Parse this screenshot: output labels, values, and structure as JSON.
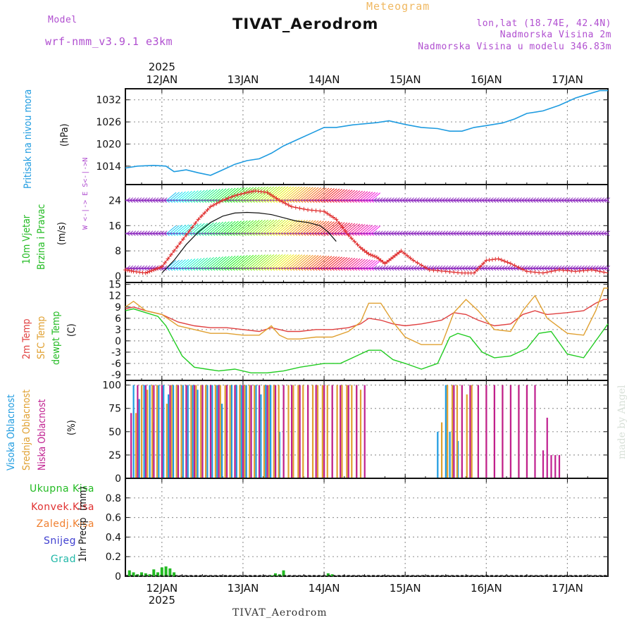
{
  "header": {
    "model_label": "Model",
    "model_name": "wrf-nmm_v3.9.1 e3km",
    "station": "TIVAT_Aerodrom",
    "product": "Meteogram",
    "lonlat": "lon,lat (18.74E, 42.4N)",
    "elevation": "Nadmorska Visina 2m",
    "model_elevation": "Nadmorska Visina u modelu 346.83m",
    "footer_station": "TIVAT_Aerodrom",
    "watermark": "made by Angel"
  },
  "colors": {
    "pressure": "#1e9be0",
    "gust": "#e03030",
    "wind": "#111111",
    "t2m": "#e04040",
    "sfc": "#e0a030",
    "dewpt": "#22cc22",
    "cloud_high": "#1e9be0",
    "cloud_mid": "#e0a030",
    "cloud_low": "#c02090",
    "precip": "#22bb22",
    "purple": "#9030c0",
    "grid": "#999999"
  },
  "chart_data": [
    {
      "type": "line",
      "panel": "pressure",
      "ylabel_main": "Pritisak na nivou mora",
      "ylabel_unit": "(hPa)",
      "xlim": [
        11.55,
        17.5
      ],
      "ylim": [
        1009,
        1035
      ],
      "yticks": [
        1014,
        1020,
        1026,
        1032
      ],
      "top_year": "2025",
      "x_ticks": [
        12,
        13,
        14,
        15,
        16,
        17
      ],
      "x_labels": [
        "12JAN",
        "13JAN",
        "14JAN",
        "15JAN",
        "16JAN",
        "17JAN"
      ],
      "series": [
        {
          "name": "MSLP",
          "x": [
            11.55,
            11.7,
            11.9,
            12.05,
            12.15,
            12.3,
            12.45,
            12.6,
            12.75,
            12.9,
            13.05,
            13.2,
            13.35,
            13.5,
            13.7,
            13.85,
            14.0,
            14.15,
            14.35,
            14.5,
            14.65,
            14.8,
            15.0,
            15.2,
            15.4,
            15.55,
            15.7,
            15.85,
            16.0,
            16.2,
            16.35,
            16.5,
            16.7,
            16.9,
            17.1,
            17.25,
            17.4,
            17.5
          ],
          "values": [
            1013.5,
            1014,
            1014.2,
            1014,
            1012.5,
            1013,
            1012.2,
            1011.5,
            1013,
            1014.5,
            1015.5,
            1016,
            1017.5,
            1019.5,
            1021.5,
            1023,
            1024.5,
            1024.5,
            1025.2,
            1025.5,
            1025.8,
            1026.3,
            1025.3,
            1024.5,
            1024.2,
            1023.5,
            1023.5,
            1024.5,
            1025,
            1025.7,
            1026.8,
            1028.3,
            1029,
            1030.5,
            1032.5,
            1033.5,
            1034.5,
            1034.5
          ]
        }
      ]
    },
    {
      "type": "line",
      "panel": "wind",
      "ylabel_main": "10m Vjetar",
      "ylabel_sub": "Brzina i Pravac",
      "ylabel_unit": "(m/s)",
      "compass": "W <-|-> E  S<-|->N",
      "ylim": [
        -2,
        29
      ],
      "yticks": [
        0,
        8,
        16,
        24
      ],
      "series": [
        {
          "name": "Gust",
          "x": [
            11.55,
            11.65,
            11.8,
            11.9,
            12.0,
            12.15,
            12.3,
            12.45,
            12.6,
            12.75,
            12.9,
            13.05,
            13.15,
            13.3,
            13.45,
            13.6,
            13.8,
            14.0,
            14.15,
            14.3,
            14.45,
            14.55,
            14.65,
            14.75,
            14.85,
            14.95,
            15.1,
            15.3,
            15.5,
            15.7,
            15.85,
            16.0,
            16.15,
            16.3,
            16.5,
            16.7,
            16.9,
            17.1,
            17.3,
            17.5
          ],
          "values": [
            2,
            1.5,
            1,
            2,
            3,
            8,
            13,
            18,
            22,
            24,
            25.5,
            26.5,
            27,
            26.5,
            24,
            22,
            21,
            20.5,
            18,
            13,
            9,
            7,
            6,
            4,
            6,
            8,
            5,
            2,
            1.5,
            1,
            1,
            5,
            5.5,
            4,
            1.5,
            1,
            2,
            1.5,
            2,
            1
          ]
        },
        {
          "name": "Wind",
          "x": [
            12.0,
            12.15,
            12.3,
            12.45,
            12.6,
            12.75,
            12.9,
            13.05,
            13.2,
            13.35,
            13.5,
            13.65,
            13.8,
            13.95,
            14.05,
            14.15
          ],
          "values": [
            1,
            5,
            10,
            14,
            17,
            19,
            20,
            20.2,
            20,
            19.5,
            18.5,
            17.5,
            17,
            16,
            14,
            11
          ]
        }
      ],
      "barb_rows": [
        24,
        13.5,
        2.5
      ]
    },
    {
      "type": "line",
      "panel": "temperature",
      "ylabel_1": "2m Temp",
      "ylabel_2": "SFC Temp",
      "ylabel_3": "dewpt Temp",
      "ylabel_unit": "(C)",
      "ylim": [
        -10.5,
        15.5
      ],
      "yticks": [
        -9,
        -6,
        -3,
        0,
        3,
        6,
        9,
        12,
        15
      ],
      "series": [
        {
          "name": "2m Temp",
          "x": [
            11.55,
            11.65,
            11.8,
            12.0,
            12.2,
            12.4,
            12.6,
            12.8,
            13.0,
            13.2,
            13.35,
            13.45,
            13.55,
            13.7,
            13.9,
            14.1,
            14.3,
            14.45,
            14.55,
            14.7,
            14.85,
            15.0,
            15.2,
            15.45,
            15.6,
            15.75,
            15.9,
            16.1,
            16.3,
            16.45,
            16.6,
            16.75,
            17.0,
            17.2,
            17.35,
            17.45,
            17.5
          ],
          "values": [
            8.5,
            9,
            8,
            7,
            5,
            4,
            3.5,
            3.5,
            3,
            2.5,
            3.5,
            3,
            2.5,
            2.5,
            3,
            3,
            3.5,
            4.5,
            6,
            5.5,
            4.5,
            4,
            4.5,
            5.5,
            7.5,
            7,
            5.5,
            4,
            4.5,
            7,
            8,
            7,
            7.5,
            8,
            10,
            11,
            11
          ]
        },
        {
          "name": "SFC Temp",
          "x": [
            11.55,
            11.65,
            11.8,
            12.0,
            12.2,
            12.4,
            12.6,
            12.8,
            13.0,
            13.2,
            13.35,
            13.45,
            13.55,
            13.7,
            13.9,
            14.1,
            14.3,
            14.45,
            14.55,
            14.7,
            14.85,
            15.0,
            15.2,
            15.45,
            15.6,
            15.75,
            15.9,
            16.1,
            16.3,
            16.45,
            16.6,
            16.75,
            17.0,
            17.2,
            17.35,
            17.45,
            17.5
          ],
          "values": [
            9,
            10.5,
            8,
            7,
            4,
            3,
            2,
            2,
            1.5,
            1.5,
            4,
            1.5,
            0.5,
            0.5,
            1,
            1,
            2.5,
            5,
            10,
            10,
            5,
            1,
            -1,
            -1,
            7.5,
            11,
            8,
            3,
            2.5,
            8,
            12,
            6,
            2,
            1.5,
            8,
            14,
            14
          ]
        },
        {
          "name": "dewpt Temp",
          "x": [
            11.55,
            11.65,
            11.8,
            11.95,
            12.05,
            12.15,
            12.25,
            12.4,
            12.55,
            12.7,
            12.9,
            13.1,
            13.3,
            13.5,
            13.7,
            14.0,
            14.2,
            14.4,
            14.55,
            14.7,
            14.85,
            15.0,
            15.2,
            15.4,
            15.55,
            15.65,
            15.8,
            15.95,
            16.1,
            16.3,
            16.5,
            16.65,
            16.8,
            17.0,
            17.2,
            17.35,
            17.5
          ],
          "values": [
            8,
            8.5,
            7.5,
            6.5,
            4,
            0,
            -4,
            -7,
            -7.5,
            -8,
            -7.5,
            -8.5,
            -8.5,
            -8,
            -7,
            -6,
            -6,
            -4,
            -2.5,
            -2.5,
            -5,
            -6,
            -7.5,
            -6,
            1,
            2,
            1,
            -3,
            -4.5,
            -4,
            -2,
            2,
            2.5,
            -3.5,
            -4.5,
            0,
            4.5
          ]
        }
      ]
    },
    {
      "type": "bar",
      "panel": "clouds",
      "ylabel_1": "Visoka Oblacnost",
      "ylabel_2": "Srednja Oblacnost",
      "ylabel_3": "Niska Oblacnost",
      "ylabel_unit": "(%)",
      "ylim": [
        0,
        105
      ],
      "yticks": [
        0,
        25,
        50,
        75,
        100
      ],
      "series": [
        {
          "name": "High",
          "x": [
            11.65,
            11.72,
            11.78,
            11.85,
            11.9,
            11.96,
            12.02,
            12.08,
            12.14,
            12.2,
            12.26,
            12.32,
            12.38,
            12.44,
            12.5,
            12.56,
            12.62,
            12.68,
            12.74,
            12.8,
            12.86,
            12.92,
            12.98,
            13.04,
            13.1,
            13.16,
            13.22,
            13.28,
            13.34,
            13.4,
            13.45,
            15.4,
            15.5,
            15.55,
            15.6,
            15.65,
            15.7
          ],
          "values": [
            100,
            85,
            100,
            100,
            60,
            100,
            100,
            90,
            100,
            100,
            100,
            100,
            100,
            95,
            100,
            100,
            100,
            100,
            80,
            100,
            100,
            100,
            100,
            100,
            100,
            100,
            90,
            100,
            100,
            30,
            50,
            50,
            100,
            50,
            100,
            40,
            10
          ]
        },
        {
          "name": "Mid",
          "x": [
            11.68,
            11.75,
            11.82,
            11.88,
            11.94,
            12.0,
            12.06,
            12.12,
            12.18,
            12.24,
            12.3,
            12.36,
            12.42,
            12.48,
            12.54,
            12.6,
            12.66,
            12.72,
            12.78,
            12.84,
            12.9,
            12.96,
            13.02,
            13.08,
            13.14,
            13.2,
            13.26,
            13.32,
            13.38,
            13.44,
            13.5,
            13.56,
            13.62,
            13.68,
            13.74,
            13.8,
            13.86,
            13.92,
            13.98,
            14.04,
            14.1,
            14.16,
            14.22,
            14.28,
            14.34,
            14.4,
            14.45,
            15.45,
            15.52,
            15.58,
            15.64,
            15.7,
            15.76,
            15.82,
            15.9,
            16.0,
            16.1,
            16.2,
            16.3,
            16.4,
            16.5
          ],
          "values": [
            70,
            100,
            95,
            100,
            100,
            100,
            80,
            100,
            100,
            100,
            100,
            100,
            100,
            100,
            100,
            100,
            100,
            100,
            100,
            100,
            100,
            100,
            100,
            100,
            100,
            100,
            100,
            100,
            100,
            100,
            100,
            100,
            100,
            100,
            100,
            100,
            100,
            100,
            100,
            100,
            100,
            100,
            100,
            100,
            100,
            100,
            95,
            60,
            100,
            100,
            100,
            100,
            90,
            100,
            100,
            100,
            100,
            100,
            100,
            100,
            100
          ]
        },
        {
          "name": "Low",
          "x": [
            11.62,
            11.7,
            11.8,
            11.9,
            12.0,
            12.1,
            12.2,
            12.3,
            12.4,
            12.5,
            12.6,
            12.7,
            12.8,
            12.9,
            13.0,
            13.1,
            13.2,
            13.3,
            13.4,
            13.5,
            13.6,
            13.7,
            13.8,
            13.9,
            14.0,
            14.1,
            14.2,
            14.3,
            14.4,
            14.5,
            15.6,
            15.7,
            15.8,
            15.9,
            16.0,
            16.1,
            16.2,
            16.3,
            16.4,
            16.5,
            16.6,
            16.7,
            16.75,
            16.8,
            16.85,
            16.9
          ],
          "values": [
            70,
            100,
            100,
            100,
            100,
            100,
            100,
            100,
            100,
            100,
            100,
            100,
            100,
            100,
            100,
            100,
            100,
            100,
            100,
            100,
            100,
            100,
            100,
            100,
            100,
            100,
            100,
            100,
            100,
            100,
            100,
            100,
            100,
            100,
            100,
            100,
            100,
            100,
            100,
            100,
            100,
            30,
            65,
            25,
            25,
            25
          ]
        }
      ]
    },
    {
      "type": "bar",
      "panel": "precip",
      "ylabel_1": "1hr Precip",
      "ylabel_unit": "(mm)",
      "legend": [
        "Ukupna Kisa",
        "Konvek.Kisa",
        "Zaledj.Kisa",
        "Snijeg",
        "Grad"
      ],
      "ylim": [
        0,
        1.0
      ],
      "yticks": [
        0,
        0.2,
        0.4,
        0.6,
        0.8
      ],
      "bottom_year": "2025",
      "series": [
        {
          "name": "Ukupna Kisa",
          "x": [
            11.6,
            11.65,
            11.7,
            11.75,
            11.8,
            11.85,
            11.9,
            11.95,
            12.0,
            12.05,
            12.1,
            12.15,
            13.35,
            13.4,
            13.45,
            13.5,
            14.05,
            14.1
          ],
          "values": [
            0.06,
            0.04,
            0.02,
            0.04,
            0.03,
            0.02,
            0.07,
            0.04,
            0.09,
            0.1,
            0.08,
            0.04,
            0.01,
            0.03,
            0.02,
            0.06,
            0.03,
            0.02
          ]
        }
      ]
    }
  ]
}
